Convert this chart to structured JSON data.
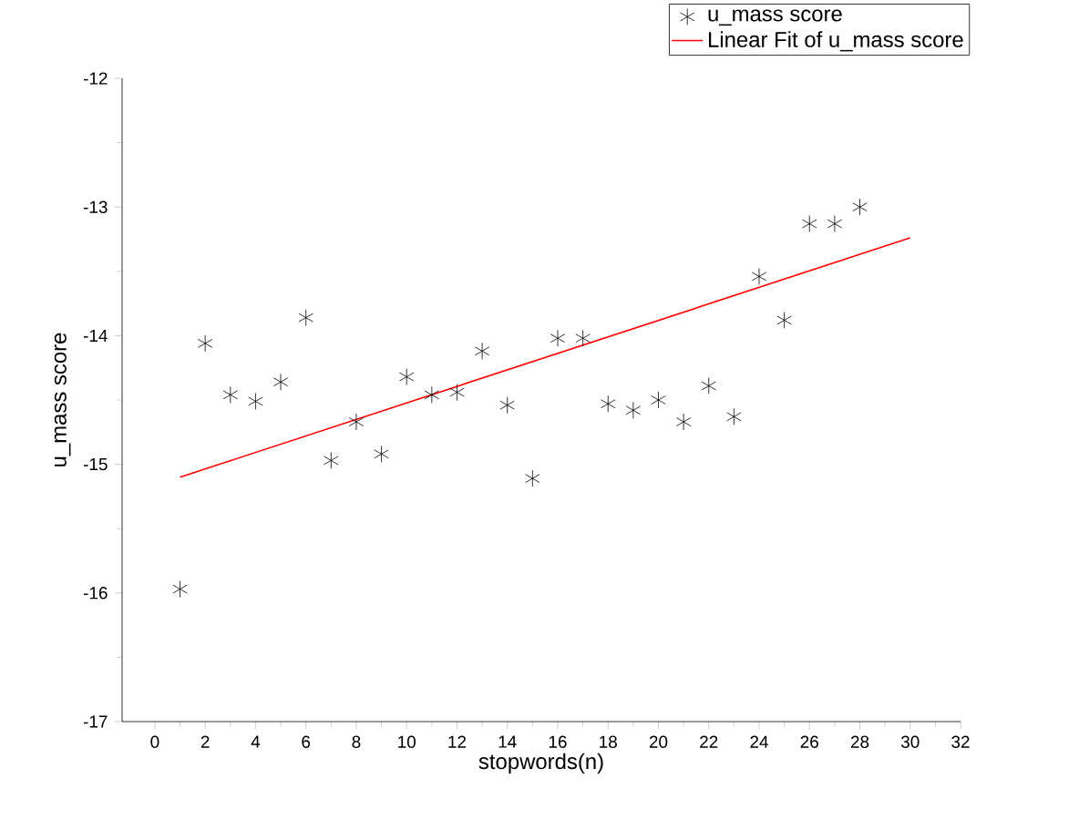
{
  "chart_data": {
    "type": "scatter",
    "xlabel": "stopwords(n)",
    "ylabel": "u_mass score",
    "xlim": [
      -1.3,
      32
    ],
    "xticks": [
      0,
      2,
      4,
      6,
      8,
      10,
      12,
      14,
      16,
      18,
      20,
      22,
      24,
      26,
      28,
      30,
      32
    ],
    "ylim": [
      -17,
      -12
    ],
    "yticks": [
      -17,
      -16,
      -15,
      -14,
      -13,
      -12
    ],
    "marker": "cross",
    "legend": "top right",
    "grid": false,
    "series": [
      {
        "name": "u_mass score",
        "color": "#000000",
        "x": [
          1,
          2,
          3,
          4,
          5,
          6,
          7,
          8,
          9,
          10,
          11,
          12,
          13,
          14,
          15,
          16,
          17,
          18,
          19,
          20,
          21,
          22,
          23,
          24,
          25,
          26,
          27,
          28
        ],
        "values": [
          -15.97,
          -14.06,
          -14.46,
          -14.51,
          -14.36,
          -13.86,
          -14.97,
          -14.67,
          -14.92,
          -14.32,
          -14.46,
          -14.44,
          -14.12,
          -14.54,
          -15.11,
          -14.02,
          -14.02,
          -14.53,
          -14.58,
          -14.5,
          -14.67,
          -14.39,
          -14.63,
          -13.54,
          -13.88,
          -13.13,
          -13.13,
          -13.0
        ]
      },
      {
        "name": "Linear Fit of u_mass score",
        "type": "line",
        "marker": "none",
        "color": "#ff0000",
        "x": [
          1,
          30
        ],
        "values": [
          -15.1,
          -13.24
        ]
      }
    ]
  }
}
